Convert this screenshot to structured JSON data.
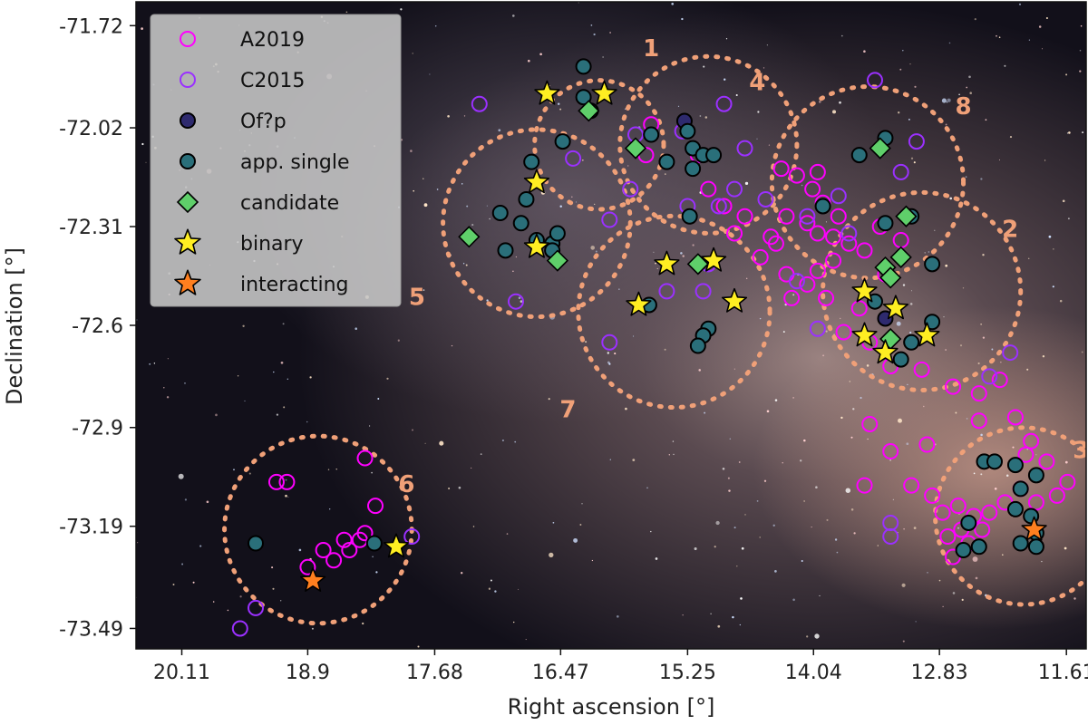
{
  "chart_data": {
    "type": "scatter",
    "xlabel": "Right ascension [°]",
    "ylabel": "Declination [°]",
    "xlim": [
      20.55,
      11.42
    ],
    "ylim": [
      -73.55,
      -71.65
    ],
    "x_ticks": [
      {
        "value": 20.11,
        "label": "20.11"
      },
      {
        "value": 18.9,
        "label": "18.9"
      },
      {
        "value": 17.68,
        "label": "17.68"
      },
      {
        "value": 16.47,
        "label": "16.47"
      },
      {
        "value": 15.25,
        "label": "15.25"
      },
      {
        "value": 14.04,
        "label": "14.04"
      },
      {
        "value": 12.83,
        "label": "12.83"
      },
      {
        "value": 11.61,
        "label": "11.61"
      }
    ],
    "y_ticks": [
      {
        "value": -71.72,
        "label": "-71.72"
      },
      {
        "value": -72.02,
        "label": "-72.02"
      },
      {
        "value": -72.31,
        "label": "-72.31"
      },
      {
        "value": -72.6,
        "label": "-72.6"
      },
      {
        "value": -72.9,
        "label": "-72.9"
      },
      {
        "value": -73.19,
        "label": "-73.19"
      },
      {
        "value": -73.49,
        "label": "-73.49"
      }
    ],
    "legend": {
      "position": "upper-left",
      "entries": [
        {
          "label": "A2019",
          "marker": "open-circle",
          "color": "#ff00ff"
        },
        {
          "label": "C2015",
          "marker": "open-circle",
          "color": "#9b30ff"
        },
        {
          "label": "Of?p",
          "marker": "filled-circle",
          "color": "#2e2a6e"
        },
        {
          "label": "app. single",
          "marker": "filled-circle",
          "color": "#2a6f7a"
        },
        {
          "label": "candidate",
          "marker": "diamond",
          "color": "#5fcf6a"
        },
        {
          "label": "binary",
          "marker": "star",
          "color": "#ffee22"
        },
        {
          "label": "interacting",
          "marker": "star",
          "color": "#ff7f1f"
        }
      ]
    },
    "regions": [
      {
        "label": "1",
        "ra": 16.1,
        "dec": -72.07,
        "r": 0.62,
        "label_ra": 15.6,
        "label_dec": -71.79
      },
      {
        "label": "4",
        "ra": 15.05,
        "dec": -72.07,
        "r": 0.85,
        "label_ra": 14.58,
        "label_dec": -71.89
      },
      {
        "label": "5",
        "ra": 16.7,
        "dec": -72.3,
        "r": 0.9,
        "label_ra": 17.85,
        "label_dec": -72.52
      },
      {
        "label": "8",
        "ra": 13.52,
        "dec": -72.18,
        "r": 0.92,
        "label_ra": 12.6,
        "label_dec": -71.96
      },
      {
        "label": "2",
        "ra": 13.0,
        "dec": -72.5,
        "r": 0.95,
        "label_ra": 12.15,
        "label_dec": -72.32
      },
      {
        "label": "7",
        "ra": 15.38,
        "dec": -72.56,
        "r": 0.92,
        "label_ra": 16.4,
        "label_dec": -72.85
      },
      {
        "label": "3",
        "ra": 12.02,
        "dec": -73.16,
        "r": 0.85,
        "label_ra": 11.47,
        "label_dec": -72.97
      },
      {
        "label": "6",
        "ra": 18.8,
        "dec": -73.2,
        "r": 0.9,
        "label_ra": 17.95,
        "label_dec": -73.07
      }
    ],
    "series": [
      {
        "name": "A2019",
        "points": [
          [
            14.35,
            -72.14
          ],
          [
            14.2,
            -72.16
          ],
          [
            14.05,
            -72.2
          ],
          [
            13.95,
            -72.24
          ],
          [
            14.3,
            -72.28
          ],
          [
            14.1,
            -72.3
          ],
          [
            14.0,
            -72.33
          ],
          [
            13.85,
            -72.34
          ],
          [
            13.7,
            -72.36
          ],
          [
            13.55,
            -72.38
          ],
          [
            13.4,
            -72.31
          ],
          [
            13.2,
            -72.35
          ],
          [
            13.35,
            -72.45
          ],
          [
            13.6,
            -72.55
          ],
          [
            13.75,
            -72.62
          ],
          [
            13.5,
            -72.65
          ],
          [
            13.3,
            -72.72
          ],
          [
            13.0,
            -72.73
          ],
          [
            12.7,
            -72.78
          ],
          [
            12.45,
            -72.8
          ],
          [
            12.25,
            -72.76
          ],
          [
            12.1,
            -72.87
          ],
          [
            11.95,
            -72.94
          ],
          [
            11.8,
            -73.0
          ],
          [
            11.6,
            -73.06
          ],
          [
            11.7,
            -73.1
          ],
          [
            11.9,
            -73.12
          ],
          [
            12.05,
            -73.08
          ],
          [
            12.2,
            -73.12
          ],
          [
            12.35,
            -73.15
          ],
          [
            12.5,
            -73.16
          ],
          [
            12.65,
            -73.13
          ],
          [
            12.8,
            -73.15
          ],
          [
            12.62,
            -73.2
          ],
          [
            12.75,
            -73.22
          ],
          [
            12.55,
            -73.24
          ],
          [
            12.42,
            -73.2
          ],
          [
            12.9,
            -73.1
          ],
          [
            13.1,
            -73.07
          ],
          [
            12.7,
            -73.28
          ],
          [
            13.3,
            -72.97
          ],
          [
            13.5,
            -72.89
          ],
          [
            12.45,
            -72.88
          ],
          [
            12.0,
            -72.98
          ],
          [
            12.95,
            -72.95
          ],
          [
            13.55,
            -73.07
          ],
          [
            14.45,
            -72.34
          ],
          [
            14.55,
            -72.4
          ],
          [
            14.3,
            -72.45
          ],
          [
            14.1,
            -72.48
          ],
          [
            13.92,
            -72.52
          ],
          [
            13.85,
            -72.41
          ],
          [
            14.0,
            -72.44
          ],
          [
            14.25,
            -72.52
          ],
          [
            14.7,
            -72.28
          ],
          [
            14.9,
            -72.25
          ],
          [
            15.05,
            -72.2
          ],
          [
            15.15,
            -72.1
          ],
          [
            14.8,
            -72.33
          ],
          [
            14.4,
            -72.36
          ],
          [
            15.65,
            -72.1
          ],
          [
            15.6,
            -72.01
          ],
          [
            13.8,
            -72.28
          ],
          [
            14.0,
            -72.15
          ],
          [
            18.75,
            -73.26
          ],
          [
            18.55,
            -73.23
          ],
          [
            18.35,
            -73.21
          ],
          [
            18.4,
            -73.23
          ],
          [
            18.5,
            -73.26
          ],
          [
            18.65,
            -73.29
          ],
          [
            18.9,
            -73.31
          ],
          [
            18.25,
            -73.13
          ],
          [
            18.35,
            -72.99
          ],
          [
            19.1,
            -73.06
          ],
          [
            19.2,
            -73.06
          ]
        ]
      },
      {
        "name": "C2015",
        "points": [
          [
            17.25,
            -71.95
          ],
          [
            16.35,
            -72.11
          ],
          [
            15.75,
            -72.04
          ],
          [
            15.3,
            -72.03
          ],
          [
            14.9,
            -71.95
          ],
          [
            14.7,
            -72.08
          ],
          [
            14.8,
            -72.2
          ],
          [
            14.95,
            -72.25
          ],
          [
            15.25,
            -72.25
          ],
          [
            15.05,
            -72.42
          ],
          [
            15.45,
            -72.5
          ],
          [
            15.1,
            -72.5
          ],
          [
            16.0,
            -72.29
          ],
          [
            15.8,
            -72.2
          ],
          [
            16.9,
            -72.53
          ],
          [
            16.0,
            -72.65
          ],
          [
            13.45,
            -71.88
          ],
          [
            13.05,
            -72.06
          ],
          [
            14.1,
            -72.28
          ],
          [
            13.7,
            -72.33
          ],
          [
            14.2,
            -72.47
          ],
          [
            14.0,
            -72.61
          ],
          [
            13.2,
            -72.15
          ],
          [
            12.15,
            -72.68
          ],
          [
            12.35,
            -72.75
          ],
          [
            13.3,
            -73.18
          ],
          [
            13.3,
            -73.22
          ],
          [
            17.9,
            -73.22
          ],
          [
            19.4,
            -73.43
          ],
          [
            19.55,
            -73.49
          ],
          [
            13.8,
            -72.22
          ],
          [
            14.5,
            -72.23
          ]
        ]
      },
      {
        "name": "Of?p",
        "points": [
          [
            15.28,
            -72.0
          ],
          [
            13.35,
            -72.58
          ]
        ]
      },
      {
        "name": "app. single",
        "points": [
          [
            16.25,
            -71.84
          ],
          [
            16.25,
            -71.93
          ],
          [
            16.18,
            -71.97
          ],
          [
            15.6,
            -72.04
          ],
          [
            16.45,
            -72.06
          ],
          [
            16.75,
            -72.12
          ],
          [
            15.25,
            -72.03
          ],
          [
            15.2,
            -72.08
          ],
          [
            15.1,
            -72.1
          ],
          [
            15.45,
            -72.12
          ],
          [
            15.2,
            -72.14
          ],
          [
            15.0,
            -72.1
          ],
          [
            16.8,
            -72.23
          ],
          [
            17.05,
            -72.27
          ],
          [
            16.85,
            -72.3
          ],
          [
            16.7,
            -72.35
          ],
          [
            16.55,
            -72.36
          ],
          [
            16.5,
            -72.33
          ],
          [
            16.55,
            -72.38
          ],
          [
            17.0,
            -72.38
          ],
          [
            15.23,
            -72.28
          ],
          [
            15.62,
            -72.54
          ],
          [
            15.05,
            -72.61
          ],
          [
            15.1,
            -72.63
          ],
          [
            15.15,
            -72.66
          ],
          [
            13.95,
            -72.25
          ],
          [
            13.6,
            -72.1
          ],
          [
            13.35,
            -72.05
          ],
          [
            13.35,
            -72.3
          ],
          [
            13.1,
            -72.28
          ],
          [
            12.9,
            -72.42
          ],
          [
            12.9,
            -72.59
          ],
          [
            13.1,
            -72.65
          ],
          [
            13.2,
            -72.7
          ],
          [
            13.45,
            -72.53
          ],
          [
            12.4,
            -73.0
          ],
          [
            12.3,
            -73.0
          ],
          [
            12.1,
            -73.01
          ],
          [
            12.05,
            -73.08
          ],
          [
            11.9,
            -73.04
          ],
          [
            12.1,
            -73.14
          ],
          [
            11.95,
            -73.16
          ],
          [
            11.9,
            -73.21
          ],
          [
            12.55,
            -73.18
          ],
          [
            12.6,
            -73.26
          ],
          [
            12.45,
            -73.25
          ],
          [
            12.05,
            -73.24
          ],
          [
            11.9,
            -73.25
          ],
          [
            18.26,
            -73.24
          ],
          [
            19.4,
            -73.24
          ]
        ]
      },
      {
        "name": "candidate",
        "points": [
          [
            16.2,
            -71.97
          ],
          [
            15.75,
            -72.08
          ],
          [
            17.35,
            -72.34
          ],
          [
            16.5,
            -72.41
          ],
          [
            15.15,
            -72.42
          ],
          [
            13.4,
            -72.08
          ],
          [
            13.15,
            -72.28
          ],
          [
            13.2,
            -72.4
          ],
          [
            13.35,
            -72.43
          ],
          [
            13.3,
            -72.46
          ],
          [
            13.3,
            -72.64
          ]
        ]
      },
      {
        "name": "binary",
        "points": [
          [
            16.6,
            -71.92
          ],
          [
            16.05,
            -71.92
          ],
          [
            16.7,
            -72.18
          ],
          [
            16.7,
            -72.37
          ],
          [
            15.45,
            -72.42
          ],
          [
            15.0,
            -72.41
          ],
          [
            15.72,
            -72.54
          ],
          [
            14.8,
            -72.53
          ],
          [
            13.55,
            -72.5
          ],
          [
            13.25,
            -72.55
          ],
          [
            13.55,
            -72.63
          ],
          [
            13.35,
            -72.68
          ],
          [
            12.95,
            -72.63
          ],
          [
            18.05,
            -73.25
          ]
        ]
      },
      {
        "name": "interacting",
        "points": [
          [
            18.85,
            -73.35
          ],
          [
            11.92,
            -73.2
          ]
        ]
      }
    ]
  }
}
